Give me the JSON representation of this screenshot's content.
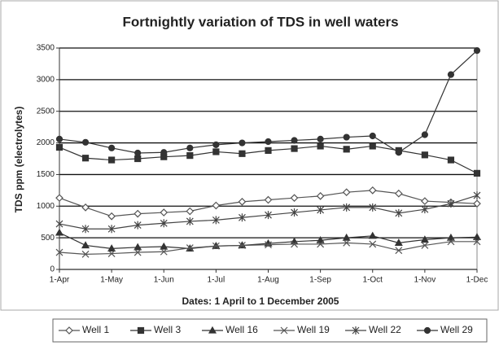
{
  "chart_data": {
    "type": "line",
    "title": "Fortnightly variation of TDS in well waters",
    "xlabel": "Dates: 1 April to 1 December 2005",
    "ylabel": "TDS ppm (electrolytes)",
    "categories": [
      "1-Apr",
      null,
      "1-May",
      null,
      "1-Jun",
      null,
      "1-Jul",
      null,
      "1-Aug",
      null,
      "1-Sep",
      null,
      "1-Oct",
      null,
      "1-Nov",
      null,
      "1-Dec"
    ],
    "ylim": [
      0,
      3500
    ],
    "yticks": [
      0,
      500,
      1000,
      1500,
      2000,
      2500,
      3000,
      3500
    ],
    "grid": true,
    "legend": "bottom",
    "series": [
      {
        "name": "Well 1",
        "color": "#555555",
        "marker": "diamond-open",
        "values": [
          1130,
          980,
          840,
          880,
          900,
          920,
          1010,
          1070,
          1100,
          1130,
          1160,
          1220,
          1250,
          1200,
          1080,
          1060,
          1040
        ]
      },
      {
        "name": "Well 3",
        "color": "#333333",
        "marker": "square",
        "values": [
          1930,
          1760,
          1730,
          1750,
          1780,
          1800,
          1860,
          1830,
          1880,
          1910,
          1950,
          1900,
          1950,
          1880,
          1810,
          1730,
          1520
        ]
      },
      {
        "name": "Well 16",
        "color": "#333333",
        "marker": "triangle",
        "values": [
          580,
          380,
          330,
          350,
          360,
          330,
          370,
          380,
          410,
          440,
          460,
          500,
          530,
          420,
          470,
          500,
          510
        ]
      },
      {
        "name": "Well 19",
        "color": "#555555",
        "marker": "x",
        "values": [
          270,
          240,
          250,
          270,
          280,
          340,
          370,
          380,
          390,
          400,
          400,
          420,
          400,
          300,
          380,
          440,
          440
        ]
      },
      {
        "name": "Well 22",
        "color": "#444444",
        "marker": "asterisk",
        "values": [
          720,
          640,
          640,
          700,
          730,
          760,
          780,
          820,
          860,
          900,
          940,
          980,
          980,
          890,
          950,
          1040,
          1170
        ]
      },
      {
        "name": "Well 29",
        "color": "#333333",
        "marker": "circle",
        "values": [
          2060,
          2010,
          1920,
          1840,
          1850,
          1920,
          1970,
          2000,
          2020,
          2040,
          2060,
          2090,
          2110,
          1850,
          2130,
          3080,
          3460
        ]
      }
    ]
  }
}
